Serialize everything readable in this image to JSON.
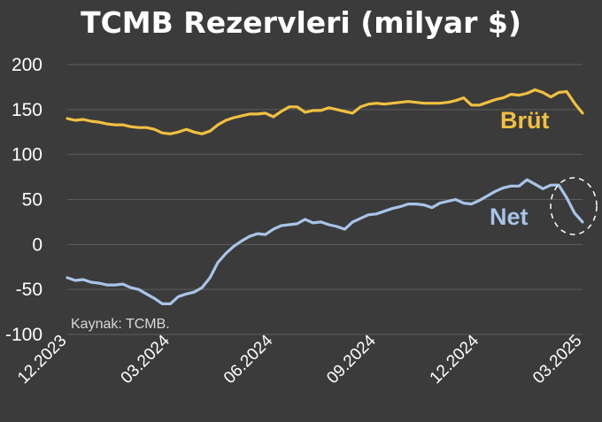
{
  "chart_data": {
    "type": "line",
    "title": "TCMB Rezervleri (milyar $)",
    "source": "Kaynak: TCMB.",
    "ylim": [
      -100,
      200
    ],
    "yticks": [
      200,
      150,
      100,
      50,
      0,
      -50,
      -100
    ],
    "xticks": [
      "12.2023",
      "03.2024",
      "06.2024",
      "09.2024",
      "12.2024",
      "03.2025"
    ],
    "x_range": [
      0,
      65
    ],
    "xtick_positions": [
      0,
      13,
      26,
      39,
      52,
      65
    ],
    "grid": true,
    "series": [
      {
        "name": "Brüt",
        "color": "#f0c040",
        "values": [
          140,
          138,
          139,
          137,
          136,
          134,
          133,
          133,
          131,
          130,
          130,
          128,
          124,
          123,
          125,
          128,
          125,
          123,
          126,
          133,
          138,
          141,
          143,
          145,
          145,
          146,
          142,
          148,
          153,
          153,
          147,
          149,
          149,
          152,
          150,
          148,
          146,
          153,
          156,
          157,
          156,
          157,
          158,
          159,
          158,
          157,
          157,
          157,
          158,
          160,
          163,
          155,
          155,
          158,
          161,
          163,
          167,
          166,
          168,
          172,
          169,
          164,
          169,
          170,
          157,
          146
        ]
      },
      {
        "name": "Net",
        "color": "#a8c4e8",
        "values": [
          -37,
          -40,
          -39,
          -42,
          -43,
          -45,
          -45,
          -44,
          -48,
          -50,
          -55,
          -60,
          -66,
          -66,
          -58,
          -55,
          -53,
          -48,
          -37,
          -20,
          -10,
          -2,
          4,
          9,
          12,
          11,
          17,
          21,
          22,
          23,
          28,
          24,
          25,
          22,
          20,
          17,
          25,
          29,
          33,
          34,
          37,
          40,
          42,
          45,
          45,
          44,
          41,
          46,
          48,
          50,
          46,
          45,
          49,
          54,
          59,
          63,
          65,
          65,
          72,
          67,
          62,
          66,
          66,
          52,
          35,
          25
        ]
      }
    ]
  }
}
